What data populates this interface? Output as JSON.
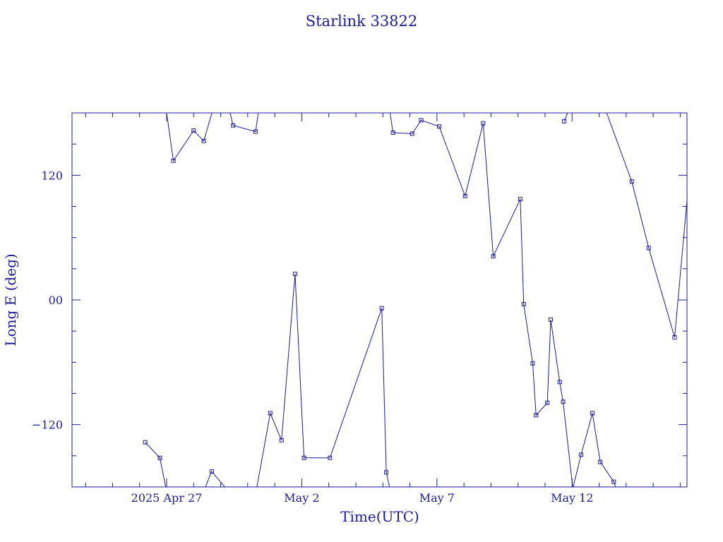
{
  "chart_data": {
    "type": "line",
    "title": "Starlink 33822",
    "xlabel": "Time(UTC)",
    "ylabel": "Long E (deg)",
    "ylim": [
      -180,
      180
    ],
    "xlim": [
      "2025-04-23 12:00",
      "2025-05-16 06:00"
    ],
    "x_ticks": [
      {
        "label": "2025 Apr 27",
        "date": "2025-04-27"
      },
      {
        "label": "May  2",
        "date": "2025-05-02"
      },
      {
        "label": "May  7",
        "date": "2025-05-07"
      },
      {
        "label": "May 12",
        "date": "2025-05-12"
      }
    ],
    "y_ticks": [
      {
        "label": "120",
        "value": 120
      },
      {
        "label": "00",
        "value": 0
      },
      {
        "label": "−120",
        "value": -120
      }
    ],
    "grid": false,
    "colors": {
      "axis": "#1a1a9c",
      "line": "#1a1a9c"
    },
    "series": [
      {
        "values": [
          [
            "2025-04-26 05:00",
            -137
          ],
          [
            "2025-04-26 18:00",
            -152
          ],
          [
            "2025-04-27 02:00",
            -195
          ],
          [
            "2025-04-26 22:00",
            195
          ],
          [
            "2025-04-27 06:00",
            134
          ],
          [
            "2025-04-28 00:00",
            163
          ],
          [
            "2025-04-28 09:00",
            153
          ],
          [
            "2025-04-28 17:00",
            183
          ],
          [
            "2025-04-28 06:00",
            -192
          ],
          [
            "2025-04-28 16:00",
            -165
          ],
          [
            "2025-04-29 06:00",
            -183
          ],
          [
            "2025-04-29 06:00",
            191
          ],
          [
            "2025-04-29 11:00",
            168
          ],
          [
            "2025-04-30 07:00",
            162
          ],
          [
            "2025-04-30 11:00",
            192
          ],
          [
            "2025-04-30 06:00",
            -193
          ],
          [
            "2025-04-30 20:00",
            -109
          ],
          [
            "2025-05-01 06:00",
            -135
          ],
          [
            "2025-05-01 18:00",
            25
          ],
          [
            "2025-05-02 02:00",
            -152
          ],
          [
            "2025-05-03 01:00",
            -152
          ],
          [
            "2025-05-04 23:00",
            -8
          ],
          [
            "2025-05-05 03:00",
            -166
          ],
          [
            "2025-05-05 08:00",
            -190
          ],
          [
            "2025-05-05 05:00",
            190
          ],
          [
            "2025-05-05 09:00",
            161
          ],
          [
            "2025-05-06 02:00",
            160
          ],
          [
            "2025-05-06 10:00",
            173
          ],
          [
            "2025-05-07 02:00",
            167
          ],
          [
            "2025-05-08 01:00",
            100
          ],
          [
            "2025-05-08 17:00",
            170
          ],
          [
            "2025-05-09 02:00",
            42
          ],
          [
            "2025-05-10 02:00",
            97
          ],
          [
            "2025-05-10 05:00",
            -4
          ],
          [
            "2025-05-10 13:00",
            -61
          ],
          [
            "2025-05-10 16:00",
            -111
          ],
          [
            "2025-05-11 02:00",
            -99
          ],
          [
            "2025-05-11 05:00",
            -19
          ],
          [
            "2025-05-11 13:00",
            -79
          ],
          [
            "2025-05-11 16:00",
            -98
          ],
          [
            "2025-05-12 01:00",
            -185
          ],
          [
            "2025-05-11 17:00",
            172
          ],
          [
            "2025-05-11 23:00",
            188
          ],
          [
            "2025-05-12 00:00",
            -184
          ],
          [
            "2025-05-12 08:00",
            -149
          ],
          [
            "2025-05-12 18:00",
            -109
          ],
          [
            "2025-05-13 01:00",
            -156
          ],
          [
            "2025-05-13 13:00",
            -175
          ],
          [
            "2025-05-13 16:00",
            -185
          ],
          [
            "2025-05-13 05:00",
            185
          ],
          [
            "2025-05-14 05:00",
            114
          ],
          [
            "2025-05-14 20:00",
            50
          ],
          [
            "2025-05-15 19:00",
            -36
          ],
          [
            "2025-05-16 08:00",
            120
          ],
          [
            "2025-05-16 11:00",
            -41
          ]
        ],
        "segments": [
          [
            0,
            2
          ],
          [
            3,
            7
          ],
          [
            8,
            10
          ],
          [
            11,
            14
          ],
          [
            15,
            23
          ],
          [
            24,
            40
          ],
          [
            41,
            42
          ],
          [
            43,
            48
          ],
          [
            49,
            54
          ]
        ]
      }
    ]
  }
}
